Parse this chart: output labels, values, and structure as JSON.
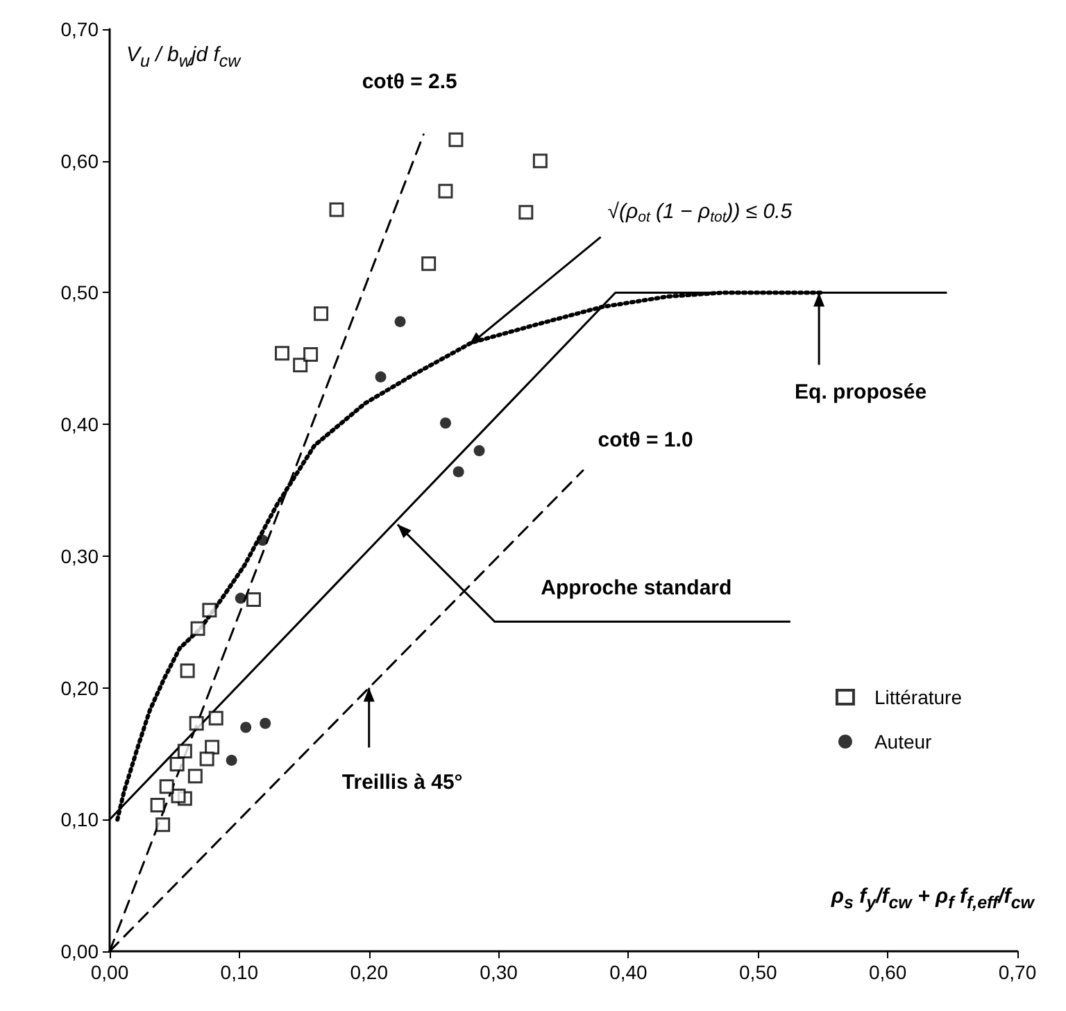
{
  "chart_data": {
    "type": "scatter",
    "xlabel": "ρ$_{s}$ f$_{y}$/f$_{cw}$ + ρ$_{f}$ f$_{f,eff}$/f$_{cw}$",
    "ylabel": "V$_{u}$ / b$_{w}$jd f$_{cw}$",
    "xlim": [
      0,
      0.7
    ],
    "ylim": [
      0,
      0.7
    ],
    "xticks": [
      {
        "value": 0,
        "label": "0,00"
      },
      {
        "value": 0.1,
        "label": "0,10"
      },
      {
        "value": 0.2,
        "label": "0,20"
      },
      {
        "value": 0.3,
        "label": "0,30"
      },
      {
        "value": 0.4,
        "label": "0,40"
      },
      {
        "value": 0.5,
        "label": "0,50"
      },
      {
        "value": 0.6,
        "label": "0,60"
      },
      {
        "value": 0.7,
        "label": "0,70"
      }
    ],
    "yticks": [
      {
        "value": 0,
        "label": "0,00"
      },
      {
        "value": 0.1,
        "label": "0,10"
      },
      {
        "value": 0.2,
        "label": "0,20"
      },
      {
        "value": 0.3,
        "label": "0,30"
      },
      {
        "value": 0.4,
        "label": "0,40"
      },
      {
        "value": 0.5,
        "label": "0,50"
      },
      {
        "value": 0.6,
        "label": "0,60"
      },
      {
        "value": 0.7,
        "label": "0,70"
      }
    ],
    "grid": false,
    "legend": "right",
    "series": [
      {
        "type": "line",
        "color": "#000000",
        "line_style": "dashed",
        "marker": "none",
        "x": [
          0,
          0.242
        ],
        "values": [
          0,
          0.62
        ]
      },
      {
        "type": "line",
        "color": "#000000",
        "line_style": "dashed",
        "marker": "none",
        "x": [
          0,
          0.365
        ],
        "values": [
          0,
          0.365
        ]
      },
      {
        "type": "line",
        "color": "#000000",
        "line_style": "solid",
        "marker": "none",
        "x": [
          0,
          0.39,
          0.645
        ],
        "values": [
          0.1,
          0.5,
          0.5
        ]
      },
      {
        "type": "line",
        "color": "#000000",
        "line_style": "dotted",
        "marker": "none",
        "x": [
          0.006,
          0.011,
          0.017,
          0.022,
          0.031,
          0.042,
          0.054,
          0.07,
          0.086,
          0.104,
          0.129,
          0.158,
          0.197,
          0.233,
          0.279,
          0.33,
          0.379,
          0.43,
          0.473,
          0.55
        ],
        "values": [
          0.1,
          0.121,
          0.14,
          0.156,
          0.183,
          0.207,
          0.23,
          0.245,
          0.267,
          0.293,
          0.339,
          0.384,
          0.416,
          0.437,
          0.462,
          0.476,
          0.489,
          0.497,
          0.5,
          0.5
        ]
      },
      {
        "name": "Littérature",
        "type": "scatter",
        "color": "#000000",
        "marker": "square",
        "x": [
          0.267,
          0.332,
          0.175,
          0.259,
          0.321,
          0.246,
          0.163,
          0.133,
          0.147,
          0.155,
          0.111,
          0.077,
          0.068,
          0.06,
          0.067,
          0.082,
          0.079,
          0.075,
          0.066,
          0.058,
          0.052,
          0.058,
          0.053,
          0.044,
          0.037,
          0.041
        ],
        "values": [
          0.616,
          0.6,
          0.563,
          0.577,
          0.561,
          0.522,
          0.484,
          0.454,
          0.445,
          0.453,
          0.267,
          0.259,
          0.245,
          0.213,
          0.173,
          0.177,
          0.155,
          0.146,
          0.133,
          0.152,
          0.142,
          0.116,
          0.118,
          0.125,
          0.111,
          0.096
        ]
      },
      {
        "name": "Auteur",
        "type": "scatter",
        "color": "#000000",
        "marker": "circle",
        "x": [
          0.224,
          0.209,
          0.259,
          0.285,
          0.269,
          0.118,
          0.101,
          0.105,
          0.12,
          0.094
        ],
        "values": [
          0.478,
          0.436,
          0.401,
          0.38,
          0.364,
          0.312,
          0.268,
          0.17,
          0.173,
          0.145
        ]
      }
    ],
    "annotations": [
      {
        "text": "cotθ = 2.5",
        "x": 0.242,
        "y": 0.62
      },
      {
        "text": "√(ρ$_{ot}$ (1 − ρ$_{tot}$)) ≤ 0.5",
        "x": 0.277,
        "y": 0.46
      },
      {
        "text": "Eq. proposée",
        "x": 0.547,
        "y": 0.5
      },
      {
        "text": "cotθ = 1.0",
        "x": 0.365,
        "y": 0.365
      },
      {
        "text": "Approche standard",
        "x": 0.222,
        "y": 0.324
      },
      {
        "text": "Treillis à 45°",
        "x": 0.2,
        "y": 0.2
      }
    ]
  }
}
